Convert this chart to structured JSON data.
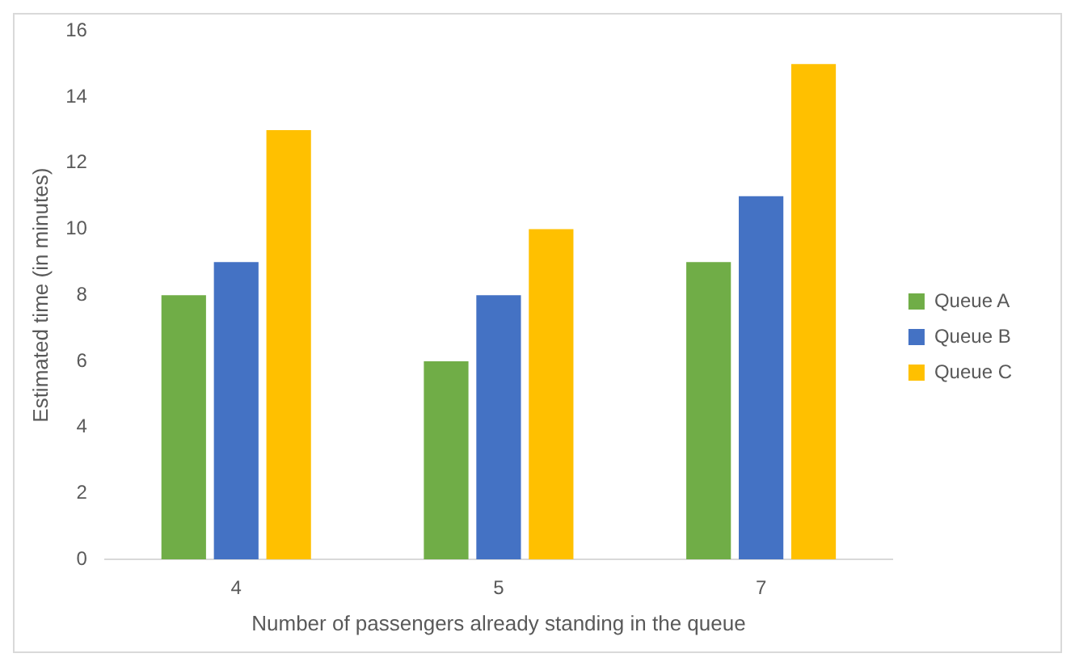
{
  "chart_data": {
    "type": "bar",
    "xlabel": "Number of passengers already standing in the queue",
    "ylabel": "Estimated time (in minutes)",
    "categories": [
      "4",
      "5",
      "7"
    ],
    "series": [
      {
        "name": "Queue A",
        "color": "#70ad47",
        "values": [
          8,
          6,
          9
        ]
      },
      {
        "name": "Queue B",
        "color": "#4472c4",
        "values": [
          9,
          8,
          11
        ]
      },
      {
        "name": "Queue C",
        "color": "#ffc000",
        "values": [
          13,
          10,
          15
        ]
      }
    ],
    "ylim": [
      0,
      16
    ],
    "yticks": [
      0,
      2,
      4,
      6,
      8,
      10,
      12,
      14,
      16
    ],
    "grid": false,
    "legend": "right"
  }
}
